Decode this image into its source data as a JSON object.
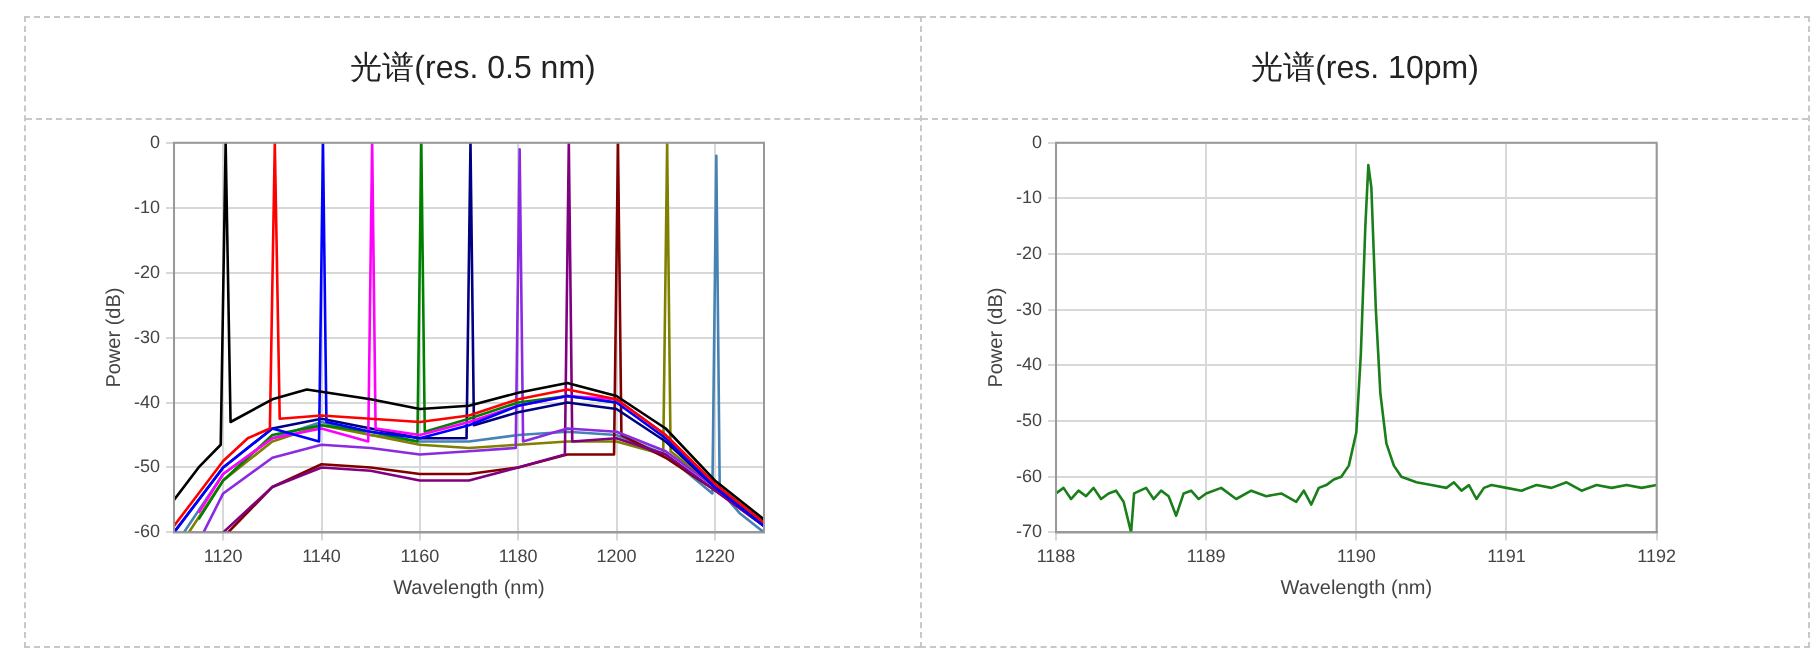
{
  "chart_data": [
    {
      "type": "line",
      "title": "光谱(res. 0.5 nm)",
      "xlabel": "Wavelength (nm)",
      "ylabel": "Power (dB)",
      "xlim": [
        1110,
        1230
      ],
      "xticks": [
        1120,
        1140,
        1160,
        1180,
        1200,
        1220
      ],
      "ylim": [
        -60,
        0
      ],
      "yticks": [
        -60,
        -50,
        -40,
        -30,
        -20,
        -10,
        0
      ],
      "grid": true,
      "legend": false,
      "series": [
        {
          "color": "#000000",
          "x": [
            1110,
            1115,
            1119.5,
            1120.5,
            1121.5,
            1130,
            1137,
            1150,
            1160,
            1170,
            1180,
            1190,
            1200,
            1210,
            1220,
            1230
          ],
          "values": [
            -55,
            -50,
            -46.5,
            0,
            -43,
            -39.5,
            -38,
            -39.5,
            -41,
            -40.5,
            -38.5,
            -37,
            -39,
            -44,
            -52,
            -58
          ]
        },
        {
          "color": "#ff0000",
          "x": [
            1110,
            1115,
            1120,
            1125,
            1129.5,
            1130.5,
            1131.5,
            1140,
            1150,
            1160,
            1170,
            1180,
            1190,
            1200,
            1210,
            1220,
            1230
          ],
          "values": [
            -59,
            -54,
            -49,
            -45.5,
            -44,
            0,
            -42.5,
            -42,
            -42.5,
            -43,
            -42,
            -39.5,
            -38,
            -39.5,
            -45,
            -52.5,
            -58.5
          ]
        },
        {
          "color": "#0000ff",
          "x": [
            1110,
            1115,
            1120,
            1130,
            1139.5,
            1140.3,
            1141,
            1150,
            1160,
            1170,
            1180,
            1190,
            1200,
            1210,
            1220,
            1230
          ],
          "values": [
            -60,
            -55,
            -50,
            -44,
            -46,
            0,
            -43,
            -44.5,
            -45.5,
            -43.5,
            -40.5,
            -39,
            -40,
            -45.5,
            -53,
            -59
          ]
        },
        {
          "color": "#ff00ff",
          "x": [
            1115,
            1120,
            1130,
            1140,
            1149.5,
            1150.3,
            1151,
            1160,
            1170,
            1180,
            1190,
            1200,
            1210
          ],
          "values": [
            -57,
            -51,
            -45.5,
            -44,
            -46,
            0,
            -44,
            -45,
            -43,
            -40.5,
            -39,
            -39.5,
            -45
          ]
        },
        {
          "color": "#008000",
          "x": [
            1115,
            1120,
            1130,
            1140,
            1150,
            1159.5,
            1160.3,
            1161,
            1170,
            1180,
            1190,
            1200
          ],
          "values": [
            -58,
            -52,
            -45,
            -43.5,
            -44.5,
            -46,
            0,
            -44.5,
            -42.5,
            -40,
            -39,
            -40
          ]
        },
        {
          "color": "#000080",
          "x": [
            1110,
            1115,
            1120,
            1130,
            1140,
            1150,
            1160,
            1169.5,
            1170.3,
            1171,
            1180,
            1190,
            1200,
            1210,
            1220,
            1230
          ],
          "values": [
            -60,
            -55,
            -50,
            -44,
            -42.5,
            -44,
            -45.5,
            -45.5,
            0,
            -43.5,
            -41.5,
            -40,
            -41,
            -46,
            -53,
            -59
          ]
        },
        {
          "color": "#8a2be2",
          "x": [
            1116,
            1120,
            1130,
            1140,
            1150,
            1160,
            1170,
            1179.5,
            1180.3,
            1181,
            1190,
            1200,
            1210,
            1220,
            1230
          ],
          "values": [
            -60,
            -54,
            -48.5,
            -46.5,
            -47,
            -48,
            -47.5,
            -47,
            -1,
            -46,
            -44,
            -44.5,
            -47.5,
            -53,
            -58.5
          ]
        },
        {
          "color": "#800080",
          "x": [
            1120,
            1130,
            1140,
            1150,
            1160,
            1170,
            1180,
            1189.5,
            1190.3,
            1191,
            1200,
            1210,
            1220,
            1230
          ],
          "values": [
            -60,
            -53,
            -50,
            -50.5,
            -52,
            -52,
            -50,
            -48,
            0,
            -46,
            -45.5,
            -48,
            -53.5,
            -59
          ]
        },
        {
          "color": "#800000",
          "x": [
            1121,
            1130,
            1140,
            1150,
            1160,
            1170,
            1180,
            1190,
            1199.5,
            1200.3,
            1201,
            1210,
            1220,
            1230
          ],
          "values": [
            -60,
            -53,
            -49.5,
            -50,
            -51,
            -51,
            -50,
            -48,
            -48,
            0,
            -45,
            -48.5,
            -53.5,
            -59
          ]
        },
        {
          "color": "#808000",
          "x": [
            1113,
            1120,
            1130,
            1140,
            1150,
            1160,
            1170,
            1180,
            1190,
            1200,
            1209.5,
            1210.3,
            1211,
            1220,
            1230
          ],
          "values": [
            -60,
            -52,
            -46,
            -43.5,
            -45,
            -46.5,
            -47,
            -46.5,
            -46,
            -46,
            -48,
            0,
            -47.5,
            -53,
            -58.5
          ]
        },
        {
          "color": "#4682b4",
          "x": [
            1112,
            1120,
            1130,
            1140,
            1150,
            1160,
            1170,
            1180,
            1190,
            1200,
            1210,
            1219.5,
            1220.3,
            1221,
            1225,
            1230
          ],
          "values": [
            -60,
            -51,
            -45.5,
            -43,
            -45,
            -46,
            -46,
            -45,
            -44.5,
            -45,
            -48,
            -54,
            -2,
            -53.5,
            -57,
            -60
          ]
        }
      ]
    },
    {
      "type": "line",
      "title": "光谱(res. 10pm)",
      "xlabel": "Wavelength (nm)",
      "ylabel": "Power (dB)",
      "xlim": [
        1188,
        1192
      ],
      "xticks": [
        1188,
        1189,
        1190,
        1191,
        1192
      ],
      "ylim": [
        -70,
        0
      ],
      "yticks": [
        -70,
        -60,
        -50,
        -40,
        -30,
        -20,
        -10,
        0
      ],
      "grid": true,
      "legend": false,
      "series": [
        {
          "color": "#1a7f1a",
          "x": [
            1188,
            1188.05,
            1188.1,
            1188.15,
            1188.2,
            1188.25,
            1188.3,
            1188.35,
            1188.4,
            1188.45,
            1188.5,
            1188.52,
            1188.6,
            1188.65,
            1188.7,
            1188.75,
            1188.8,
            1188.85,
            1188.9,
            1188.95,
            1189,
            1189.1,
            1189.2,
            1189.3,
            1189.4,
            1189.5,
            1189.6,
            1189.65,
            1189.7,
            1189.75,
            1189.8,
            1189.85,
            1189.9,
            1189.95,
            1190,
            1190.03,
            1190.06,
            1190.08,
            1190.1,
            1190.13,
            1190.16,
            1190.2,
            1190.25,
            1190.3,
            1190.35,
            1190.4,
            1190.5,
            1190.6,
            1190.65,
            1190.7,
            1190.75,
            1190.8,
            1190.85,
            1190.9,
            1191,
            1191.1,
            1191.2,
            1191.3,
            1191.4,
            1191.5,
            1191.6,
            1191.7,
            1191.8,
            1191.9,
            1192
          ],
          "values": [
            -63,
            -62,
            -64,
            -62.5,
            -63.5,
            -62,
            -64,
            -63,
            -62.5,
            -64.5,
            -70,
            -63,
            -62,
            -64,
            -62.5,
            -63.5,
            -67,
            -63,
            -62.5,
            -64,
            -63,
            -62,
            -64,
            -62.5,
            -63.5,
            -63,
            -64.5,
            -62.5,
            -65,
            -62,
            -61.5,
            -60.5,
            -60,
            -58,
            -52,
            -38,
            -15,
            -4,
            -8,
            -30,
            -45,
            -54,
            -58,
            -60,
            -60.5,
            -61,
            -61.5,
            -62,
            -61,
            -62.5,
            -61.5,
            -64,
            -62,
            -61.5,
            -62,
            -62.5,
            -61.5,
            -62,
            -61,
            -62.5,
            -61.5,
            -62,
            -61.5,
            -62,
            -61.5
          ]
        }
      ]
    }
  ]
}
